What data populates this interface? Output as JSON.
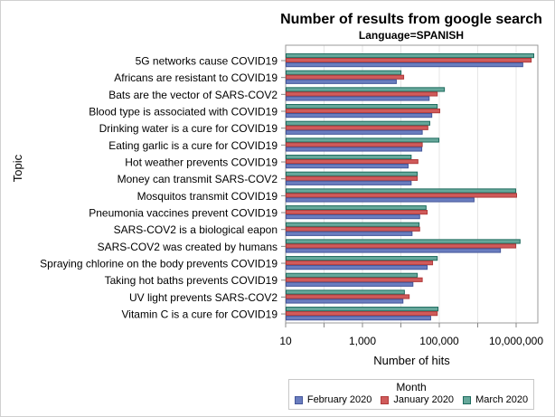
{
  "chart_data": {
    "type": "bar",
    "orientation": "horizontal",
    "title": "Number of results from google search",
    "subtitle": "Language=SPANISH",
    "xlabel": "Number of hits",
    "ylabel": "Topic",
    "xscale": "log",
    "xlim": [
      10,
      36000000
    ],
    "xticks": [
      {
        "value": 10,
        "label": "10"
      },
      {
        "value": 1000,
        "label": "1,000"
      },
      {
        "value": 100000,
        "label": "100,000"
      },
      {
        "value": 10000000,
        "label": "10,000,000"
      }
    ],
    "minor_ticks": [
      100,
      10000,
      1000000
    ],
    "grid": true,
    "legend": {
      "title": "Month",
      "placement": "bottom-right"
    },
    "categories": [
      "5G networks cause COVID19",
      "Africans are resistant to COVID19",
      "Bats are the vector of SARS-COV2",
      "Blood type is associated with COVID19",
      "Drinking water is a cure for COVID19",
      "Eating garlic is a cure for COVID19",
      "Hot weather prevents COVID19",
      "Money can transmit SARS-COV2",
      "Mosquitos transmit COVID19",
      "Pneumonia vaccines prevent COVID19",
      "SARS-COV2 is a biological eapon",
      "SARS-COV2 was created by humans",
      "Spraying chlorine on the body prevents COVID19",
      "Taking hot baths prevents COVID19",
      "UV light prevents SARS-COV2",
      "Vitamin C is a cure for COVID19"
    ],
    "series": [
      {
        "name": "February 2020",
        "color": "#6a7dbf",
        "stroke": "#44569a",
        "values": [
          14500000,
          7400,
          53000,
          62000,
          35000,
          34000,
          15000,
          18000,
          780000,
          30000,
          19000,
          3800000,
          47000,
          20000,
          11000,
          58000
        ]
      },
      {
        "name": "January 2020",
        "color": "#d05b5b",
        "stroke": "#b03a3a",
        "values": [
          24000000,
          11500,
          86000,
          100000,
          49000,
          35000,
          27000,
          26000,
          10000000,
          47000,
          30000,
          9500000,
          65000,
          35000,
          16000,
          86000
        ]
      },
      {
        "name": "March 2020",
        "color": "#66a89b",
        "stroke": "#1e6b5e",
        "values": [
          28000000,
          9800,
          132000,
          86000,
          55000,
          95000,
          18000,
          26000,
          9500000,
          44000,
          29000,
          12300000,
          86000,
          26000,
          12000,
          90000
        ]
      }
    ],
    "bar_order_within_group_top_to_bottom": [
      "March 2020",
      "January 2020",
      "February 2020"
    ]
  }
}
